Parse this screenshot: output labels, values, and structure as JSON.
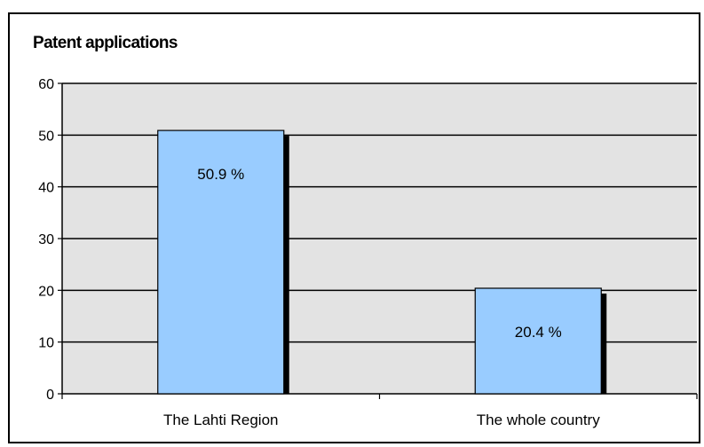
{
  "chart_data": {
    "type": "bar",
    "title": "Patent applications",
    "categories": [
      "The Lahti Region",
      "The whole country"
    ],
    "values": [
      50.9,
      20.4
    ],
    "data_labels": [
      "50.9 %",
      "20.4 %"
    ],
    "ylim": [
      0,
      60
    ],
    "yticks": [
      "0",
      "10",
      "20",
      "30",
      "40",
      "50",
      "60"
    ],
    "grid": true,
    "legend": "none",
    "colors": {
      "plot_background": "#e3e3e3",
      "bar_fill": "#99ccff",
      "bar_shadow": "#000000",
      "gridline": "#000000"
    }
  }
}
